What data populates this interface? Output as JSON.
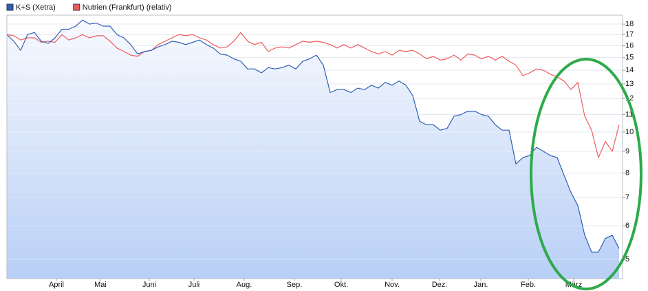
{
  "chart_data": {
    "type": "line",
    "log_scale": true,
    "grid": true,
    "legend": "top-left",
    "xlim": [
      0,
      89.5
    ],
    "xticks": [
      {
        "value": 7.2,
        "label": "April"
      },
      {
        "value": 13.6,
        "label": "Mai"
      },
      {
        "value": 20.7,
        "label": "Juni"
      },
      {
        "value": 27.2,
        "label": "Juli"
      },
      {
        "value": 34.5,
        "label": "Aug."
      },
      {
        "value": 41.8,
        "label": "Sep."
      },
      {
        "value": 48.6,
        "label": "Okt."
      },
      {
        "value": 56,
        "label": "Nov."
      },
      {
        "value": 62.9,
        "label": "Dez."
      },
      {
        "value": 68.9,
        "label": "Jan."
      },
      {
        "value": 75.8,
        "label": "Feb."
      },
      {
        "value": 82.4,
        "label": "März"
      }
    ],
    "ylim": [
      4.5,
      18.9
    ],
    "yticks": [
      18,
      17,
      16,
      15,
      14,
      13,
      12,
      11,
      10,
      9,
      8,
      7,
      6,
      5
    ],
    "series": [
      {
        "name": "K+S (Xetra)",
        "color": "#2f5fb3",
        "values": [
          17.0,
          16.4,
          15.6,
          17.0,
          17.2,
          16.4,
          16.2,
          16.7,
          17.5,
          17.5,
          17.8,
          18.4,
          18.0,
          18.1,
          17.8,
          17.8,
          17.0,
          16.7,
          16.1,
          15.3,
          15.5,
          15.6,
          15.9,
          16.1,
          16.4,
          16.3,
          16.1,
          16.3,
          16.5,
          16.1,
          15.8,
          15.3,
          15.2,
          14.9,
          14.7,
          14.1,
          14.1,
          13.8,
          14.2,
          14.1,
          14.2,
          14.4,
          14.1,
          14.7,
          14.9,
          15.2,
          14.4,
          12.4,
          12.6,
          12.6,
          12.4,
          12.7,
          12.6,
          12.9,
          12.7,
          13.1,
          12.9,
          13.2,
          12.9,
          12.2,
          10.6,
          10.4,
          10.4,
          10.1,
          10.2,
          10.9,
          11.0,
          11.2,
          11.2,
          11.0,
          10.9,
          10.4,
          10.1,
          10.1,
          8.4,
          8.7,
          8.8,
          9.2,
          9.0,
          8.8,
          8.7,
          7.9,
          7.2,
          6.7,
          5.7,
          5.2,
          5.2,
          5.6,
          5.7,
          5.3
        ]
      },
      {
        "name": "Nutrien (Frankfurt) (relativ)",
        "color": "#ef5b5b",
        "values": [
          17.0,
          16.9,
          16.5,
          16.7,
          16.7,
          16.3,
          16.4,
          16.3,
          17.0,
          16.5,
          16.7,
          17.0,
          16.7,
          16.9,
          16.9,
          16.4,
          15.8,
          15.5,
          15.2,
          15.1,
          15.5,
          15.6,
          16.1,
          16.4,
          16.7,
          17.0,
          16.9,
          17.0,
          16.7,
          16.5,
          16.1,
          15.8,
          15.9,
          16.4,
          17.2,
          16.4,
          16.1,
          16.3,
          15.5,
          15.8,
          15.9,
          15.8,
          16.1,
          16.4,
          16.3,
          16.4,
          16.3,
          16.1,
          15.8,
          16.1,
          15.8,
          16.1,
          15.8,
          15.5,
          15.3,
          15.5,
          15.2,
          15.6,
          15.5,
          15.6,
          15.3,
          14.9,
          15.1,
          14.8,
          14.9,
          15.2,
          14.8,
          15.3,
          15.2,
          14.9,
          15.1,
          14.8,
          15.1,
          14.7,
          14.4,
          13.6,
          13.8,
          14.1,
          14.0,
          13.7,
          13.5,
          13.2,
          12.6,
          13.1,
          10.9,
          10.1,
          8.7,
          9.5,
          9.0,
          10.4
        ]
      }
    ]
  }
}
